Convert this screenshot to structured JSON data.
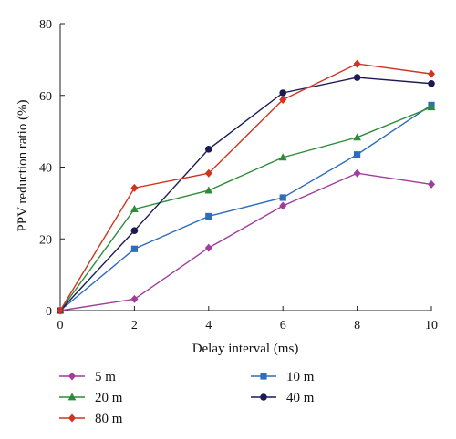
{
  "chart_data": {
    "type": "line",
    "title": "",
    "xlabel": "Delay interval (ms)",
    "ylabel": "PPV reduction ratio (%)",
    "xlim": [
      0,
      10
    ],
    "ylim": [
      0,
      80
    ],
    "xticks": [
      0,
      2,
      4,
      6,
      8,
      10
    ],
    "yticks": [
      0,
      20,
      40,
      60,
      80
    ],
    "x": [
      0,
      2,
      4,
      6,
      8,
      10
    ],
    "grid": false,
    "legend_position": "bottom",
    "series": [
      {
        "name": "5 m",
        "marker": "diamond",
        "color": "#a03c9c",
        "values": [
          0,
          3.2,
          17.5,
          29.2,
          38.3,
          35.2
        ]
      },
      {
        "name": "10 m",
        "marker": "square",
        "color": "#2f6dbb",
        "values": [
          0,
          17.2,
          26.3,
          31.5,
          43.5,
          57.3
        ]
      },
      {
        "name": "20 m",
        "marker": "triangle",
        "color": "#2e8b3a",
        "values": [
          0,
          28.3,
          33.5,
          42.7,
          48.3,
          56.7
        ]
      },
      {
        "name": "40 m",
        "marker": "circle",
        "color": "#1c1a55",
        "values": [
          0,
          22.3,
          45.0,
          60.7,
          65.0,
          63.3
        ]
      },
      {
        "name": "80 m",
        "marker": "diamond",
        "color": "#d0341f",
        "values": [
          0,
          34.2,
          38.3,
          58.8,
          68.8,
          66.0
        ]
      }
    ]
  }
}
